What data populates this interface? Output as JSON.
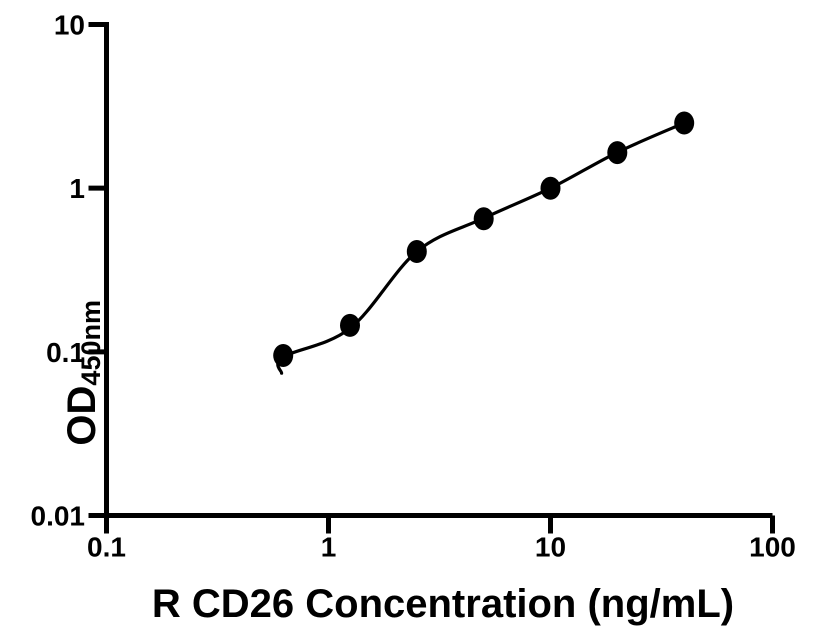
{
  "figure": {
    "background_color": "#ffffff",
    "foreground_color": "#000000"
  },
  "chart_data": {
    "type": "scatter",
    "title": "",
    "xlabel": "R CD26 Concentration (ng/mL)",
    "ylabel_main": "OD",
    "ylabel_sub": "450nm",
    "x_scale": "log10",
    "y_scale": "log10",
    "xlim": [
      0.1,
      100
    ],
    "ylim": [
      0.01,
      10
    ],
    "x_ticks": [
      "0.1",
      "1",
      "10",
      "100"
    ],
    "y_ticks": [
      "0.01",
      "0.1",
      "1",
      "10"
    ],
    "grid": false,
    "legend": "none",
    "axis_color": "#000000",
    "series": [
      {
        "name": "standard-points",
        "marker": "filled-circle",
        "color": "#000000",
        "points": [
          [
            0.625,
            0.095
          ],
          [
            1.25,
            0.145
          ],
          [
            2.5,
            0.41
          ],
          [
            5,
            0.65
          ],
          [
            10,
            1.0
          ],
          [
            20,
            1.65
          ],
          [
            40,
            2.5
          ]
        ]
      }
    ],
    "fit_curve": {
      "name": "fitted-standard-curve",
      "color": "#000000",
      "points": [
        [
          0.615,
          0.074
        ],
        [
          0.625,
          0.093
        ],
        [
          1.25,
          0.139
        ],
        [
          2.5,
          0.41
        ],
        [
          5,
          0.655
        ],
        [
          10,
          1.0
        ],
        [
          20,
          1.655
        ],
        [
          40,
          2.5
        ]
      ]
    }
  }
}
